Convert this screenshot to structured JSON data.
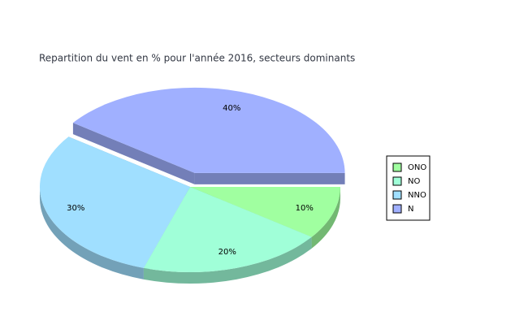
{
  "chart_data": {
    "type": "pie",
    "title": "Repartition du vent en % pour l'année 2016, secteurs dominants",
    "categories": [
      "ONO",
      "NO",
      "NNO",
      "N"
    ],
    "values": [
      10,
      20,
      30,
      40
    ],
    "value_labels": [
      "10%",
      "20%",
      "30%",
      "40%"
    ],
    "colors": [
      "#a0ffa0",
      "#a0ffd8",
      "#a0dfff",
      "#a0b0ff"
    ],
    "explode": [
      false,
      false,
      false,
      true
    ],
    "legend": "right"
  }
}
